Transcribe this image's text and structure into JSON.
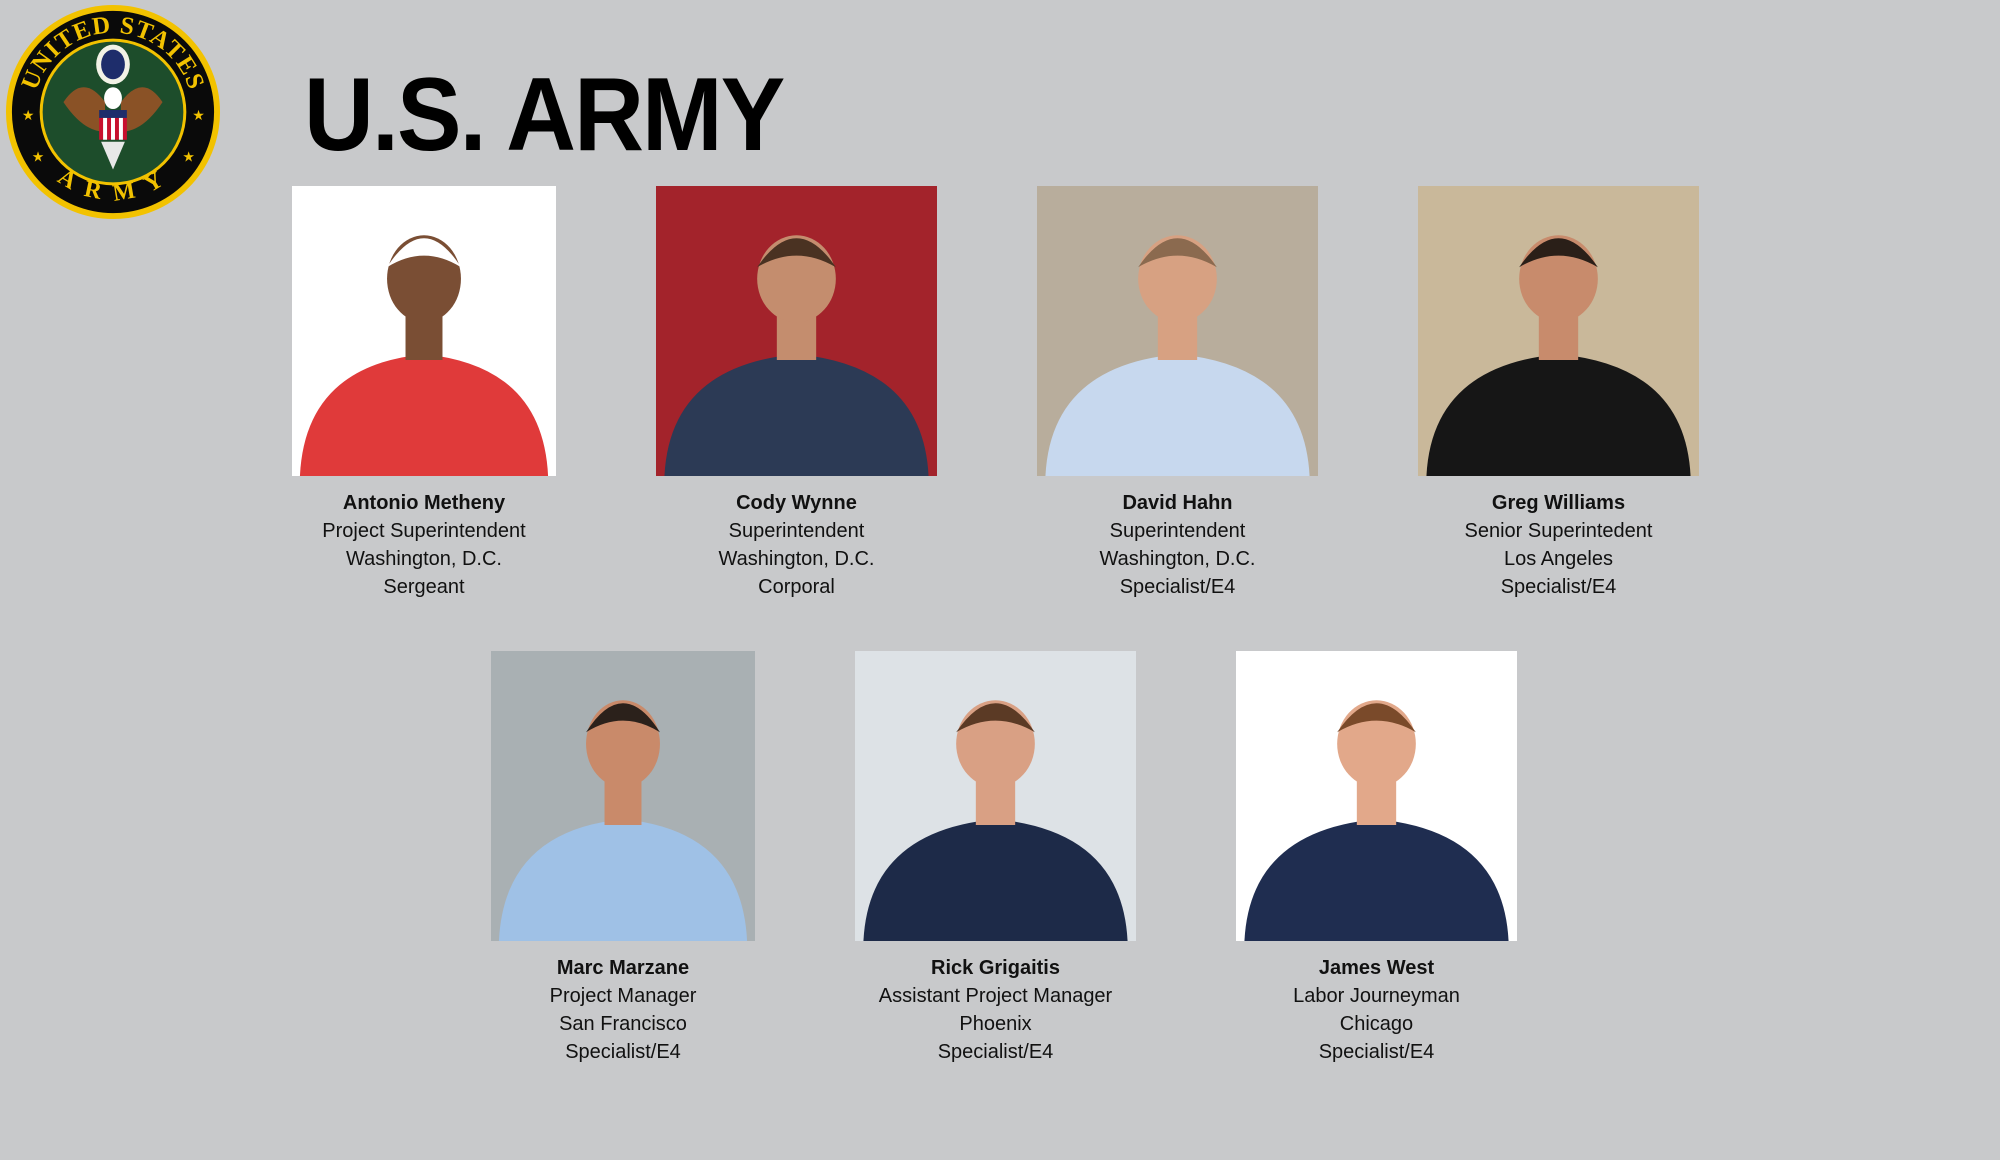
{
  "title": "U.S. ARMY",
  "logo": {
    "text_top": "UNITED STATES",
    "text_bottom": "ARMY",
    "colors": {
      "ring": "#f2c200",
      "field": "#1d4d2b",
      "band": "#0a0a0a"
    }
  },
  "people": [
    {
      "name": "Antonio Metheny",
      "role": "Project Superintendent",
      "location": "Washington, D.C.",
      "rank": "Sergeant",
      "photo": {
        "bg": "#ffffff",
        "shirt": "#e03a3a",
        "skin": "#7a4e34",
        "hair": "#ffffff"
      }
    },
    {
      "name": "Cody Wynne",
      "role": "Superintendent",
      "location": "Washington, D.C.",
      "rank": "Corporal",
      "photo": {
        "bg": "#a3232b",
        "shirt": "#2c3a55",
        "skin": "#c48d6e",
        "hair": "#4a3222"
      }
    },
    {
      "name": "David Hahn",
      "role": "Superintendent",
      "location": "Washington, D.C.",
      "rank": "Specialist/E4",
      "photo": {
        "bg": "#b8ad9c",
        "shirt": "#c7d8ee",
        "skin": "#d7a182",
        "hair": "#8b6a4f"
      }
    },
    {
      "name": "Greg Williams",
      "role": "Senior Superintedent",
      "location": "Los Angeles",
      "rank": "Specialist/E4",
      "photo": {
        "bg": "#c9b89a",
        "shirt": "#161616",
        "skin": "#c88b6c",
        "hair": "#2a1f18"
      }
    },
    {
      "name": "Marc Marzane",
      "role": "Project Manager",
      "location": "San Francisco",
      "rank": "Specialist/E4",
      "photo": {
        "bg": "#a9b0b3",
        "shirt": "#9fc1e6",
        "skin": "#c98a6a",
        "hair": "#2b211b"
      }
    },
    {
      "name": "Rick Grigaitis",
      "role": "Assistant Project Manager",
      "location": "Phoenix",
      "rank": "Specialist/E4",
      "photo": {
        "bg": "#dde2e6",
        "shirt": "#1d2a48",
        "skin": "#d9a084",
        "hair": "#5b3a25"
      }
    },
    {
      "name": "James West",
      "role": "Labor Journeyman",
      "location": "Chicago",
      "rank": "Specialist/E4",
      "photo": {
        "bg": "#ffffff",
        "shirt": "#1f2d50",
        "skin": "#e2a88a",
        "hair": "#7a4a2a"
      }
    }
  ]
}
